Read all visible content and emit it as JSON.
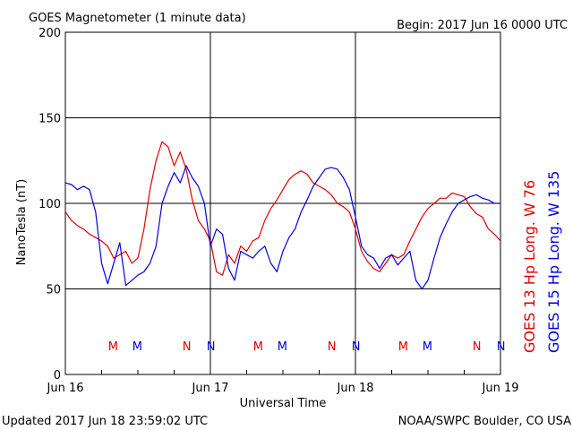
{
  "header": {
    "title": "GOES Magnetometer (1 minute data)",
    "begin": "Begin:  2017 Jun 16 0000 UTC"
  },
  "footer": {
    "updated": "Updated 2017 Jun 18 23:59:02 UTC",
    "source": "NOAA/SWPC Boulder, CO USA"
  },
  "colors": {
    "goes13": "#e00000",
    "goes15": "#0000e0",
    "grid": "#000000"
  },
  "chart_data": {
    "type": "line",
    "title": "GOES Magnetometer (1 minute data)",
    "xlabel": "Universal Time",
    "ylabel": "NanoTesla (nT)",
    "xlim": [
      0,
      72
    ],
    "ylim": [
      0,
      200
    ],
    "grid": true,
    "x_unit": "hours since 2017 Jun 16 0000 UTC",
    "x_ticks": [
      {
        "label": "Jun 16",
        "x": 0
      },
      {
        "label": "Jun 17",
        "x": 24
      },
      {
        "label": "Jun 18",
        "x": 48
      },
      {
        "label": "Jun 19",
        "x": 72
      }
    ],
    "y_ticks": [
      0,
      50,
      100,
      150,
      200
    ],
    "legend_placement": "right-vertical",
    "series": [
      {
        "name": "GOES 13 Hp",
        "legend": "GOES 13 Hp   Long. W 76",
        "color": "#e00000",
        "x": [
          0,
          1,
          2,
          3,
          4,
          5,
          6,
          7,
          8,
          9,
          10,
          11,
          12,
          13,
          14,
          15,
          16,
          17,
          18,
          19,
          20,
          21,
          22,
          23,
          24,
          25,
          26,
          27,
          28,
          29,
          30,
          31,
          32,
          33,
          34,
          35,
          36,
          37,
          38,
          39,
          40,
          41,
          42,
          43,
          44,
          45,
          46,
          47,
          48,
          49,
          50,
          51,
          52,
          53,
          54,
          55,
          56,
          57,
          58,
          59,
          60,
          61,
          62,
          63,
          64,
          65,
          66,
          67,
          68,
          69,
          70,
          71,
          72
        ],
        "values": [
          95,
          90,
          87,
          85,
          82,
          80,
          78,
          75,
          68,
          70,
          72,
          65,
          68,
          85,
          108,
          125,
          136,
          133,
          122,
          130,
          120,
          102,
          90,
          85,
          78,
          60,
          58,
          70,
          65,
          75,
          72,
          78,
          80,
          90,
          97,
          102,
          108,
          114,
          117,
          119,
          117,
          112,
          110,
          108,
          105,
          100,
          98,
          95,
          85,
          72,
          66,
          62,
          60,
          65,
          70,
          68,
          70,
          78,
          85,
          92,
          97,
          100,
          103,
          103,
          106,
          105,
          104,
          98,
          94,
          92,
          85,
          82,
          78
        ],
        "markers": [
          {
            "label": "M",
            "x": 7.9
          },
          {
            "label": "N",
            "x": 20.1
          },
          {
            "label": "M",
            "x": 31.9
          },
          {
            "label": "N",
            "x": 44.1
          },
          {
            "label": "M",
            "x": 55.9
          },
          {
            "label": "N",
            "x": 68.1
          }
        ]
      },
      {
        "name": "GOES 15 Hp",
        "legend": "GOES 15 Hp   Long. W 135",
        "color": "#0000e0",
        "x": [
          0,
          1,
          2,
          3,
          4,
          5,
          6,
          7,
          8,
          9,
          10,
          11,
          12,
          13,
          14,
          15,
          16,
          17,
          18,
          19,
          20,
          21,
          22,
          23,
          24,
          25,
          26,
          27,
          28,
          29,
          30,
          31,
          32,
          33,
          34,
          35,
          36,
          37,
          38,
          39,
          40,
          41,
          42,
          43,
          44,
          45,
          46,
          47,
          48,
          49,
          50,
          51,
          52,
          53,
          54,
          55,
          56,
          57,
          58,
          59,
          60,
          61,
          62,
          63,
          64,
          65,
          66,
          67,
          68,
          69,
          70,
          71,
          72
        ],
        "values": [
          112,
          111,
          108,
          110,
          108,
          95,
          65,
          53,
          65,
          77,
          52,
          55,
          58,
          60,
          65,
          75,
          100,
          110,
          118,
          112,
          122,
          115,
          110,
          100,
          75,
          85,
          82,
          62,
          55,
          72,
          70,
          68,
          72,
          75,
          65,
          60,
          72,
          80,
          85,
          95,
          102,
          110,
          115,
          120,
          121,
          120,
          115,
          108,
          92,
          75,
          70,
          68,
          62,
          68,
          70,
          64,
          68,
          72,
          55,
          50,
          55,
          68,
          80,
          88,
          95,
          100,
          102,
          104,
          105,
          103,
          102,
          100,
          100
        ],
        "markers": [
          {
            "label": "M",
            "x": 11.9
          },
          {
            "label": "N",
            "x": 24.1
          },
          {
            "label": "M",
            "x": 35.9
          },
          {
            "label": "N",
            "x": 48.1
          },
          {
            "label": "M",
            "x": 59.9
          },
          {
            "label": "N",
            "x": 72.1
          }
        ]
      }
    ]
  }
}
